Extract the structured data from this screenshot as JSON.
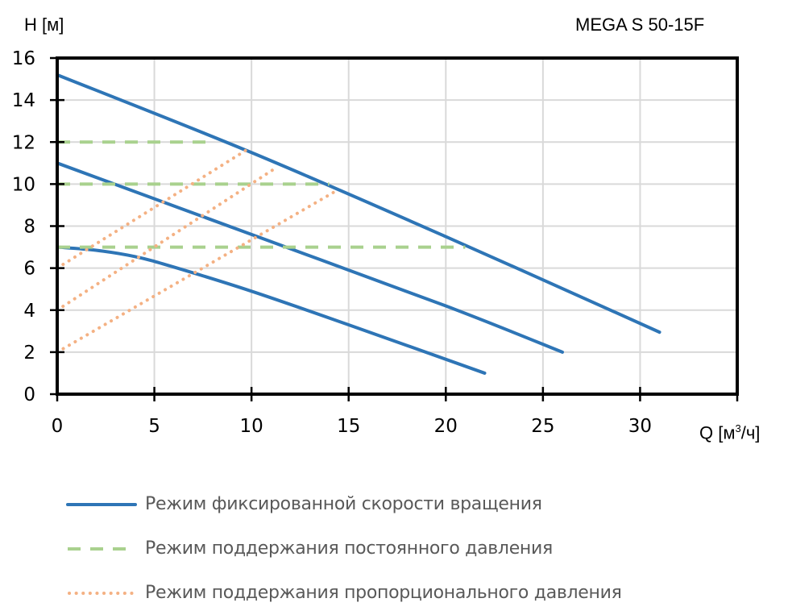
{
  "chart_data": {
    "type": "line",
    "title": "MEGA S 50-15F",
    "xlabel": "Q [м³/ч]",
    "ylabel": "H [м]",
    "xlim": [
      0,
      35
    ],
    "ylim": [
      0,
      16
    ],
    "x_ticks": [
      0,
      5,
      10,
      15,
      20,
      25,
      30
    ],
    "y_ticks": [
      0,
      2,
      4,
      6,
      8,
      10,
      12,
      14,
      16
    ],
    "grid": true,
    "legend_position": "bottom",
    "series": [
      {
        "name": "Режим фиксированной скорости вращения",
        "style": "solid",
        "color": "#2E75B6",
        "curve": "max",
        "points": [
          [
            0,
            15.2
          ],
          [
            10,
            11.5
          ],
          [
            20,
            7.5
          ],
          [
            31,
            2.95
          ]
        ]
      },
      {
        "name": "Режим фиксированной скорости вращения",
        "style": "solid",
        "color": "#2E75B6",
        "curve": "mid",
        "points": [
          [
            0,
            11.0
          ],
          [
            10,
            7.6
          ],
          [
            20,
            4.2
          ],
          [
            26,
            2.0
          ]
        ]
      },
      {
        "name": "Режим фиксированной скорости вращения",
        "style": "solid",
        "color": "#2E75B6",
        "curve": "min",
        "points": [
          [
            0,
            7.0
          ],
          [
            2,
            6.85
          ],
          [
            4,
            6.55
          ],
          [
            6,
            6.05
          ],
          [
            10,
            4.9
          ],
          [
            15,
            3.3
          ],
          [
            22,
            1.0
          ]
        ]
      },
      {
        "name": "Режим поддержания постоянного давления",
        "style": "dashed",
        "color": "#A9D18E",
        "curve": "12 m",
        "points": [
          [
            0,
            12
          ],
          [
            8,
            12
          ]
        ]
      },
      {
        "name": "Режим поддержания постоянного давления",
        "style": "dashed",
        "color": "#A9D18E",
        "curve": "10 m",
        "points": [
          [
            0,
            10
          ],
          [
            14,
            10
          ]
        ]
      },
      {
        "name": "Режим поддержания постоянного давления",
        "style": "dashed",
        "color": "#A9D18E",
        "curve": "7 m",
        "points": [
          [
            0,
            7
          ],
          [
            21,
            7
          ]
        ]
      },
      {
        "name": "Режим поддержания пропорционального давления",
        "style": "dotted",
        "color": "#F4B183",
        "curve": "high",
        "points": [
          [
            0,
            6
          ],
          [
            9.7,
            11.6
          ]
        ]
      },
      {
        "name": "Режим поддержания пропорционального давления",
        "style": "dotted",
        "color": "#F4B183",
        "curve": "mid",
        "points": [
          [
            0,
            4
          ],
          [
            11.3,
            10.8
          ]
        ]
      },
      {
        "name": "Режим поддержания пропорционального давления",
        "style": "dotted",
        "color": "#F4B183",
        "curve": "low",
        "points": [
          [
            0,
            2
          ],
          [
            14.4,
            9.7
          ]
        ]
      }
    ]
  },
  "labels": {
    "title": "MEGA S 50-15F",
    "y_axis": "H [м]",
    "x_axis_prefix": "Q [м",
    "x_axis_sup": "3",
    "x_axis_suffix": "/ч]"
  },
  "legend": [
    {
      "label": "Режим фиксированной скорости вращения",
      "color": "#2E75B6",
      "style": "solid"
    },
    {
      "label": "Режим поддержания постоянного давления",
      "color": "#A9D18E",
      "style": "dashed"
    },
    {
      "label": "Режим поддержания пропорционального давления",
      "color": "#F4B183",
      "style": "dotted"
    }
  ]
}
